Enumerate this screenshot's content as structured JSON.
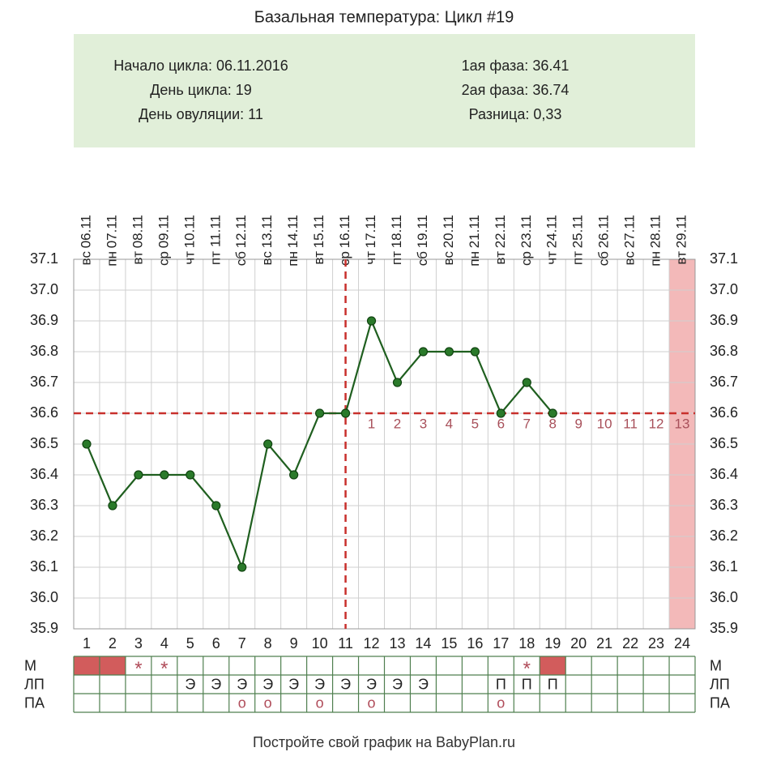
{
  "chart_data": {
    "type": "line",
    "title": "Базальная температура: Цикл #19",
    "info": {
      "left": [
        {
          "label": "Начало цикла:",
          "value": "06.11.2016"
        },
        {
          "label": "День цикла:",
          "value": "19"
        },
        {
          "label": "День овуляции:",
          "value": "11"
        }
      ],
      "right": [
        {
          "label": "1ая фаза:",
          "value": "36.41"
        },
        {
          "label": "2ая фаза:",
          "value": "36.74"
        },
        {
          "label": "Разница:",
          "value": "0,33"
        }
      ]
    },
    "x": [
      1,
      2,
      3,
      4,
      5,
      6,
      7,
      8,
      9,
      10,
      11,
      12,
      13,
      14,
      15,
      16,
      17,
      18,
      19,
      20,
      21,
      22,
      23,
      24
    ],
    "dates": [
      "06.11",
      "07.11",
      "08.11",
      "09.11",
      "10.11",
      "11.11",
      "12.11",
      "13.11",
      "14.11",
      "15.11",
      "16.11",
      "17.11",
      "18.11",
      "19.11",
      "20.11",
      "21.11",
      "22.11",
      "23.11",
      "24.11",
      "25.11",
      "26.11",
      "27.11",
      "28.11",
      "29.11"
    ],
    "weekdays": [
      "вс",
      "пн",
      "вт",
      "ср",
      "чт",
      "пт",
      "сб",
      "вс",
      "пн",
      "вт",
      "ср",
      "чт",
      "пт",
      "сб",
      "вс",
      "пн",
      "вт",
      "ср",
      "чт",
      "пт",
      "сб",
      "вс",
      "пн",
      "вт"
    ],
    "series": [
      {
        "name": "Температура",
        "color": "#1f5f1f",
        "values": [
          36.5,
          36.3,
          36.4,
          36.4,
          36.4,
          36.3,
          36.1,
          36.5,
          36.4,
          36.6,
          36.6,
          36.9,
          36.7,
          36.8,
          36.8,
          36.8,
          36.6,
          36.7,
          36.6,
          null,
          null,
          null,
          null,
          null
        ]
      }
    ],
    "xlim": [
      0.5,
      24.5
    ],
    "ylim": [
      35.9,
      37.1
    ],
    "yticks": [
      35.9,
      {
        "value": 36,
        "label": "36.0"
      },
      36.1,
      36.2,
      36.3,
      36.4,
      36.5,
      36.6,
      36.7,
      36.8,
      36.9,
      {
        "value": 37,
        "label": "37.0"
      },
      37.1
    ],
    "grid": true,
    "coverline": 36.6,
    "ovulation_day": 11,
    "highlight_day": 24,
    "luteal_labels": [
      1,
      2,
      3,
      4,
      5,
      6,
      7,
      8,
      9,
      10,
      11,
      12,
      13
    ],
    "table": {
      "rows": [
        {
          "label": "М",
          "filled_days": [
            1,
            2,
            19
          ],
          "cells": [
            null,
            null,
            "*",
            "*",
            null,
            null,
            null,
            null,
            null,
            null,
            null,
            null,
            null,
            null,
            null,
            null,
            null,
            "*",
            null,
            null,
            null,
            null,
            null,
            null
          ]
        },
        {
          "label": "ЛП",
          "cells": [
            null,
            null,
            null,
            null,
            "Э",
            "Э",
            "Э",
            "Э",
            "Э",
            "Э",
            "Э",
            "Э",
            "Э",
            "Э",
            null,
            null,
            "П",
            "П",
            "П",
            null,
            null,
            null,
            null,
            null
          ]
        },
        {
          "label": "ПА",
          "cells": [
            null,
            null,
            null,
            null,
            null,
            null,
            "о",
            "о",
            null,
            "о",
            null,
            "о",
            null,
            null,
            null,
            null,
            "о",
            null,
            null,
            null,
            null,
            null,
            null,
            null
          ]
        }
      ]
    },
    "footer": "Постройте свой график на BabyPlan.ru"
  }
}
